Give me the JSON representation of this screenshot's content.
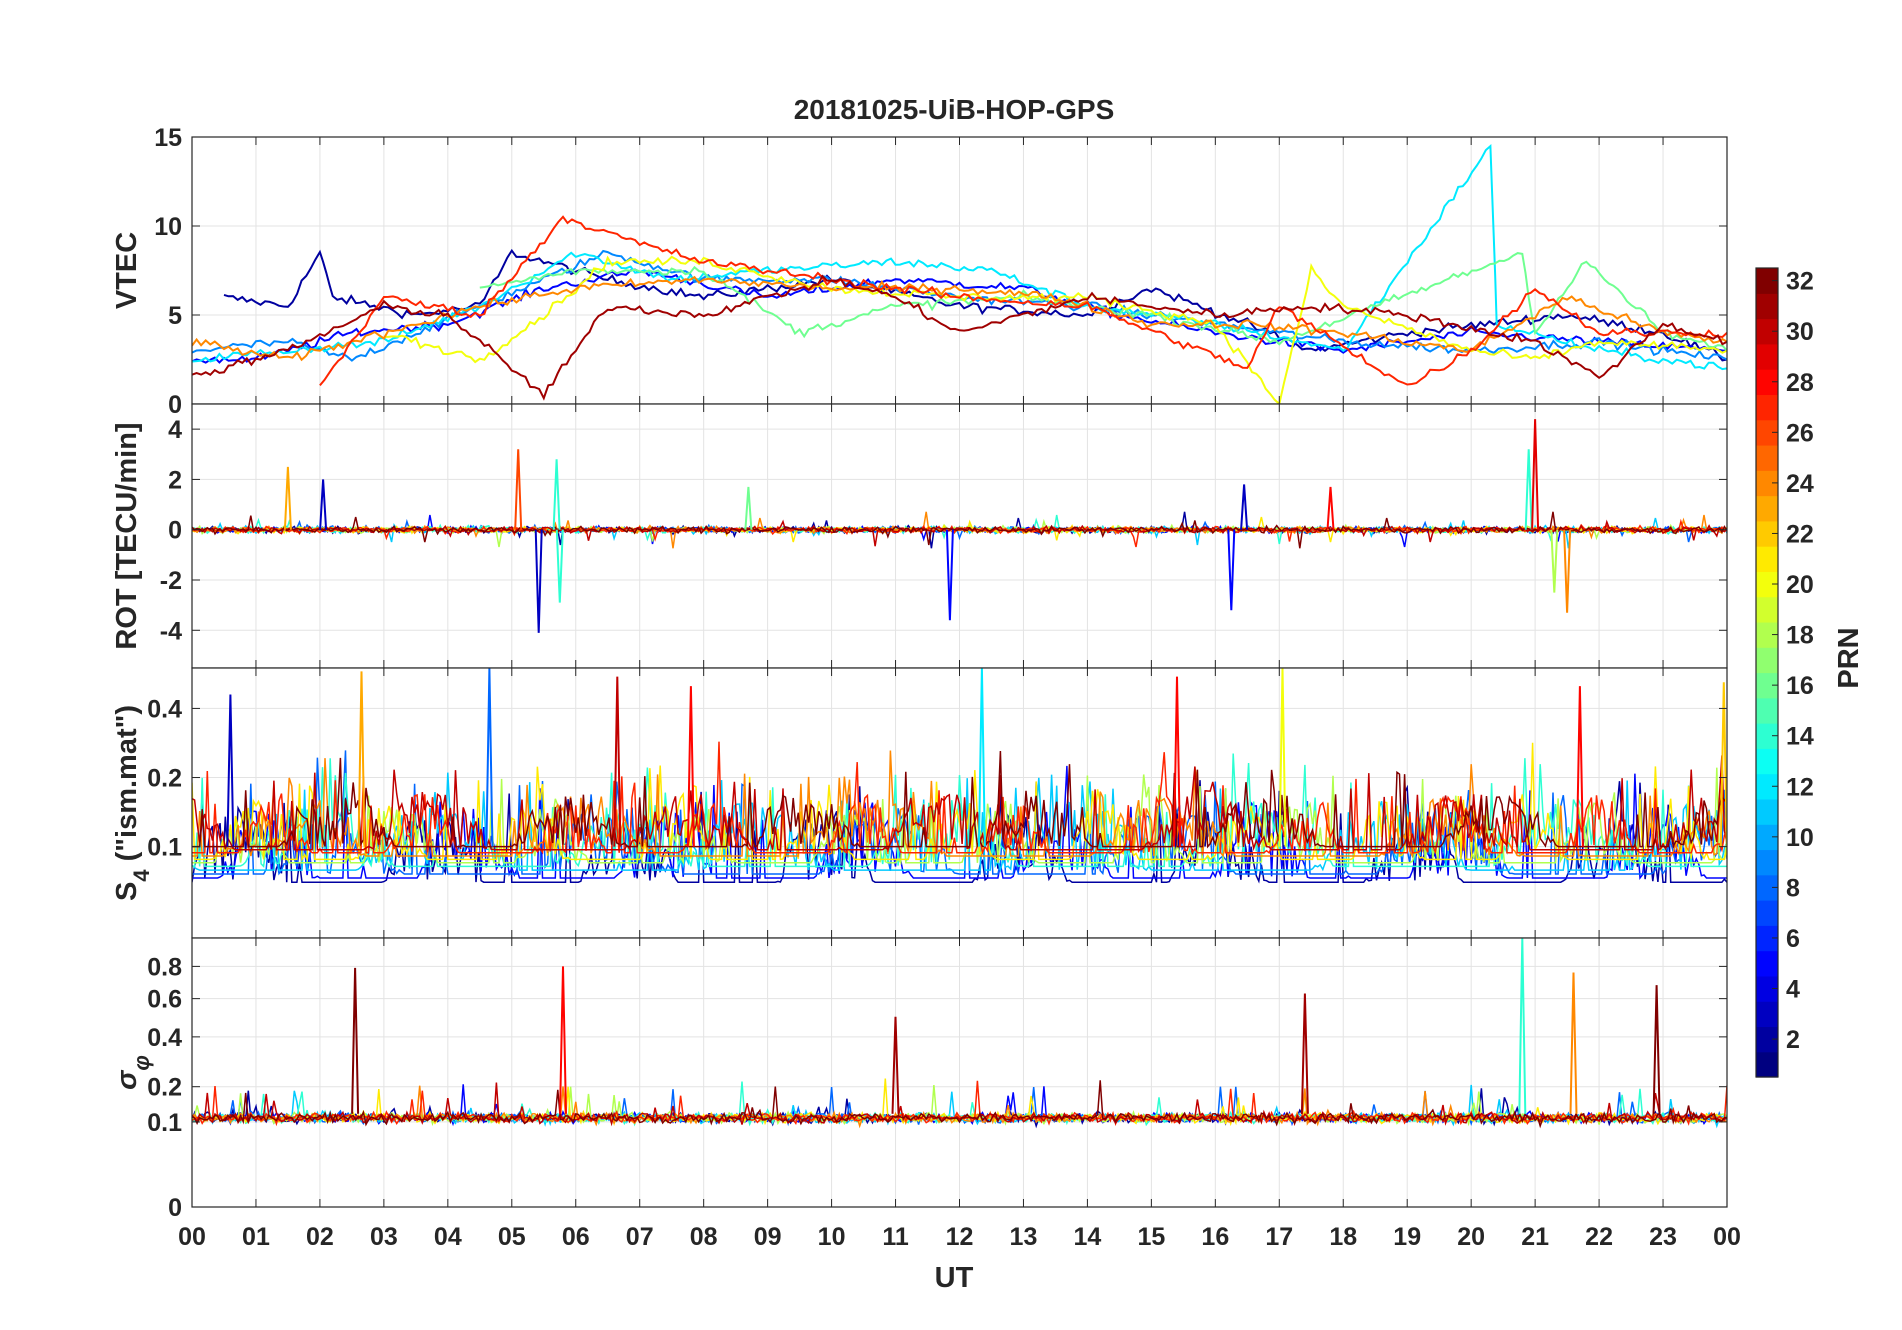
{
  "chart_data": {
    "type": "line",
    "title": "20181025-UiB-HOP-GPS",
    "xlabel": "UT",
    "x_tick_labels": [
      "00",
      "01",
      "02",
      "03",
      "04",
      "05",
      "06",
      "07",
      "08",
      "09",
      "10",
      "11",
      "12",
      "13",
      "14",
      "15",
      "16",
      "17",
      "18",
      "19",
      "20",
      "21",
      "22",
      "23",
      "00"
    ],
    "x_range_hours": [
      0,
      24
    ],
    "grid": true,
    "panels": [
      {
        "ylabel": "VTEC",
        "ylim": [
          0,
          15
        ],
        "y_ticks": [
          0,
          5,
          10,
          15
        ],
        "approx_series": [
          {
            "prn": 2,
            "points": [
              [
                0.5,
                6.0
              ],
              [
                1.5,
                5.5
              ],
              [
                2.0,
                8.5
              ],
              [
                2.2,
                6.0
              ],
              [
                3.5,
                5.0
              ],
              [
                4.5,
                5.5
              ],
              [
                5.0,
                8.5
              ],
              [
                6.5,
                7.0
              ],
              [
                8.0,
                6.0
              ],
              [
                10.0,
                7.0
              ],
              [
                12.0,
                5.5
              ],
              [
                14.0,
                5.0
              ],
              [
                15.0,
                6.5
              ],
              [
                16.5,
                4.5
              ],
              [
                17.5,
                3.0
              ],
              [
                19.0,
                4.0
              ],
              [
                21.5,
                5.0
              ],
              [
                23.0,
                4.0
              ],
              [
                24.0,
                2.5
              ]
            ]
          },
          {
            "prn": 5,
            "points": [
              [
                0.0,
                2.5
              ],
              [
                1.0,
                2.5
              ],
              [
                2.5,
                4.0
              ],
              [
                4.0,
                4.5
              ],
              [
                5.5,
                6.5
              ],
              [
                7.0,
                7.5
              ],
              [
                9.0,
                6.0
              ],
              [
                11.0,
                7.0
              ],
              [
                13.0,
                6.5
              ],
              [
                14.5,
                5.0
              ],
              [
                16.0,
                4.0
              ],
              [
                18.0,
                3.0
              ],
              [
                20.0,
                4.0
              ],
              [
                22.0,
                3.5
              ],
              [
                24.0,
                3.0
              ]
            ]
          },
          {
            "prn": 9,
            "points": [
              [
                0.0,
                3.0
              ],
              [
                1.5,
                3.5
              ],
              [
                2.5,
                2.5
              ],
              [
                3.5,
                4.0
              ],
              [
                5.5,
                7.0
              ],
              [
                6.5,
                8.5
              ],
              [
                8.0,
                7.0
              ],
              [
                10.0,
                7.0
              ],
              [
                12.0,
                6.0
              ],
              [
                14.0,
                5.5
              ],
              [
                16.0,
                4.5
              ],
              [
                18.0,
                3.5
              ],
              [
                20.0,
                3.0
              ],
              [
                22.0,
                3.5
              ],
              [
                24.0,
                2.5
              ]
            ]
          },
          {
            "prn": 12,
            "points": [
              [
                0.0,
                2.5
              ],
              [
                1.5,
                3.0
              ],
              [
                3.0,
                3.5
              ],
              [
                4.5,
                5.5
              ],
              [
                6.0,
                8.5
              ],
              [
                7.5,
                7.0
              ],
              [
                9.0,
                7.5
              ],
              [
                11.0,
                8.0
              ],
              [
                12.5,
                7.5
              ],
              [
                14.0,
                5.5
              ],
              [
                16.0,
                4.5
              ],
              [
                18.0,
                3.0
              ],
              [
                20.3,
                14.5
              ],
              [
                20.4,
                4.5
              ],
              [
                22.0,
                3.0
              ],
              [
                24.0,
                2.0
              ]
            ]
          },
          {
            "prn": 16,
            "points": [
              [
                4.5,
                6.5
              ],
              [
                6.0,
                7.5
              ],
              [
                8.0,
                7.5
              ],
              [
                9.5,
                4.0
              ],
              [
                11.0,
                5.5
              ],
              [
                13.0,
                6.0
              ],
              [
                15.0,
                5.0
              ],
              [
                17.0,
                3.5
              ],
              [
                20.8,
                8.5
              ],
              [
                21.0,
                4.0
              ],
              [
                21.8,
                8.0
              ],
              [
                23.0,
                4.0
              ],
              [
                24.0,
                3.0
              ]
            ]
          },
          {
            "prn": 20,
            "points": [
              [
                3.0,
                4.0
              ],
              [
                4.5,
                2.5
              ],
              [
                5.5,
                5.0
              ],
              [
                6.5,
                8.0
              ],
              [
                8.0,
                8.0
              ],
              [
                10.0,
                6.5
              ],
              [
                12.0,
                6.0
              ],
              [
                14.0,
                6.0
              ],
              [
                16.0,
                4.5
              ],
              [
                17.0,
                0.0
              ],
              [
                17.5,
                7.5
              ],
              [
                18.0,
                5.5
              ],
              [
                20.0,
                3.0
              ],
              [
                21.0,
                2.5
              ],
              [
                22.0,
                3.5
              ],
              [
                24.0,
                3.0
              ]
            ]
          },
          {
            "prn": 24,
            "points": [
              [
                0.0,
                3.5
              ],
              [
                1.5,
                2.5
              ],
              [
                3.0,
                4.0
              ],
              [
                4.5,
                5.5
              ],
              [
                6.0,
                6.5
              ],
              [
                8.0,
                7.0
              ],
              [
                10.0,
                6.5
              ],
              [
                12.0,
                6.5
              ],
              [
                13.5,
                6.0
              ],
              [
                15.0,
                4.5
              ],
              [
                16.5,
                4.5
              ],
              [
                18.0,
                4.0
              ],
              [
                20.0,
                3.0
              ],
              [
                21.5,
                6.0
              ],
              [
                23.0,
                4.0
              ],
              [
                24.0,
                3.5
              ]
            ]
          },
          {
            "prn": 27,
            "points": [
              [
                2.0,
                1.0
              ],
              [
                3.0,
                6.0
              ],
              [
                4.5,
                5.0
              ],
              [
                5.8,
                10.5
              ],
              [
                7.0,
                9.0
              ],
              [
                8.0,
                8.0
              ],
              [
                10.0,
                7.0
              ],
              [
                12.0,
                6.0
              ],
              [
                14.0,
                5.5
              ],
              [
                16.5,
                2.0
              ],
              [
                17.0,
                5.5
              ],
              [
                19.0,
                1.0
              ],
              [
                20.0,
                3.0
              ],
              [
                21.0,
                6.5
              ],
              [
                22.0,
                4.0
              ],
              [
                24.0,
                4.0
              ]
            ]
          },
          {
            "prn": 31,
            "points": [
              [
                0.0,
                1.5
              ],
              [
                1.5,
                3.0
              ],
              [
                3.0,
                5.5
              ],
              [
                4.0,
                5.0
              ],
              [
                5.5,
                0.5
              ],
              [
                6.5,
                5.5
              ],
              [
                8.0,
                5.0
              ],
              [
                10.0,
                7.0
              ],
              [
                11.0,
                6.0
              ],
              [
                12.0,
                4.0
              ],
              [
                14.0,
                6.0
              ],
              [
                16.0,
                5.0
              ],
              [
                17.5,
                5.5
              ],
              [
                19.0,
                5.0
              ],
              [
                21.0,
                3.5
              ],
              [
                22.0,
                1.5
              ],
              [
                23.0,
                4.5
              ],
              [
                24.0,
                3.5
              ]
            ]
          }
        ]
      },
      {
        "ylabel": "ROT [TECU/min]",
        "ylim": [
          -5.5,
          5
        ],
        "y_ticks": [
          -4,
          -2,
          0,
          2,
          4
        ],
        "approx_spikes": [
          {
            "prn": 23,
            "hour": 1.5,
            "value": 2.5
          },
          {
            "prn": 3,
            "hour": 2.05,
            "value": 2.0
          },
          {
            "prn": 3,
            "hour": 5.42,
            "value": -4.1
          },
          {
            "prn": 26,
            "hour": 5.1,
            "value": 3.2
          },
          {
            "prn": 14,
            "hour": 5.7,
            "value": 2.8
          },
          {
            "prn": 14,
            "hour": 5.75,
            "value": -2.9
          },
          {
            "prn": 16,
            "hour": 8.7,
            "value": 1.7
          },
          {
            "prn": 5,
            "hour": 11.85,
            "value": -3.6
          },
          {
            "prn": 5,
            "hour": 16.25,
            "value": -3.2
          },
          {
            "prn": 3,
            "hour": 16.45,
            "value": 1.8
          },
          {
            "prn": 28,
            "hour": 17.8,
            "value": 1.7
          },
          {
            "prn": 14,
            "hour": 20.9,
            "value": 3.2
          },
          {
            "prn": 29,
            "hour": 21.0,
            "value": 4.4
          },
          {
            "prn": 24,
            "hour": 21.5,
            "value": -3.3
          },
          {
            "prn": 18,
            "hour": 21.3,
            "value": -2.5
          }
        ]
      },
      {
        "ylabel": "S4 (\"ism.mat\")",
        "ylim": [
          0.04,
          0.6
        ],
        "y_ticks": [
          0.1,
          0.2,
          0.4
        ],
        "approx_spikes": [
          {
            "prn": 3,
            "hour": 0.6,
            "value": 0.46
          },
          {
            "prn": 23,
            "hour": 2.65,
            "value": 0.58
          },
          {
            "prn": 8,
            "hour": 4.65,
            "value": 0.6
          },
          {
            "prn": 30,
            "hour": 6.65,
            "value": 0.55
          },
          {
            "prn": 28,
            "hour": 7.8,
            "value": 0.5
          },
          {
            "prn": 12,
            "hour": 12.35,
            "value": 0.6
          },
          {
            "prn": 28,
            "hour": 15.4,
            "value": 0.55
          },
          {
            "prn": 20,
            "hour": 17.05,
            "value": 0.6
          },
          {
            "prn": 28,
            "hour": 21.7,
            "value": 0.5
          },
          {
            "prn": 22,
            "hour": 23.95,
            "value": 0.52
          }
        ]
      },
      {
        "ylabel": "σφ",
        "ylim": [
          0,
          1.0
        ],
        "y_ticks": [
          0,
          0.1,
          0.2,
          0.4,
          0.6,
          0.8
        ],
        "approx_spikes": [
          {
            "prn": 32,
            "hour": 2.55,
            "value": 0.79
          },
          {
            "prn": 28,
            "hour": 5.8,
            "value": 0.8
          },
          {
            "prn": 31,
            "hour": 11.0,
            "value": 0.5
          },
          {
            "prn": 31,
            "hour": 17.4,
            "value": 0.63
          },
          {
            "prn": 14,
            "hour": 20.8,
            "value": 1.0
          },
          {
            "prn": 24,
            "hour": 21.6,
            "value": 0.76
          },
          {
            "prn": 32,
            "hour": 22.9,
            "value": 0.68
          }
        ]
      }
    ],
    "colorbar": {
      "label": "PRN",
      "range": [
        1,
        32
      ],
      "ticks": [
        2,
        4,
        6,
        8,
        10,
        12,
        14,
        16,
        18,
        20,
        22,
        24,
        26,
        28,
        30,
        32
      ],
      "colormap": "jet"
    }
  }
}
